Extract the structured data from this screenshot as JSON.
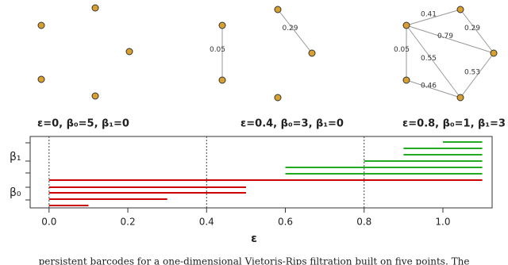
{
  "panels": [
    {
      "caption": "ε=0, β₀=5, β₁=0",
      "points": [
        [
          52,
          32
        ],
        [
          120,
          10
        ],
        [
          163,
          65
        ],
        [
          52,
          100
        ],
        [
          120,
          121
        ]
      ],
      "edges": []
    },
    {
      "caption": "ε=0.4, β₀=3, β₁=0",
      "points": [
        [
          280,
          32
        ],
        [
          280,
          101
        ],
        [
          350,
          12
        ],
        [
          393,
          67
        ],
        [
          350,
          123
        ]
      ],
      "edges": [
        {
          "from": 0,
          "to": 1,
          "label": "0.05"
        },
        {
          "from": 2,
          "to": 3,
          "label": "0.29"
        }
      ]
    },
    {
      "caption": "ε=0.8, β₀=1, β₁=3",
      "points": [
        [
          512,
          32
        ],
        [
          580,
          12
        ],
        [
          622,
          67
        ],
        [
          512,
          101
        ],
        [
          580,
          123
        ]
      ],
      "edges": [
        {
          "from": 0,
          "to": 1,
          "label": "0.41"
        },
        {
          "from": 1,
          "to": 2,
          "label": "0.29"
        },
        {
          "from": 0,
          "to": 2,
          "label": "0.79"
        },
        {
          "from": 0,
          "to": 3,
          "label": "0.05"
        },
        {
          "from": 0,
          "to": 4,
          "label": "0.55"
        },
        {
          "from": 2,
          "to": 4,
          "label": "0.53"
        },
        {
          "from": 3,
          "to": 4,
          "label": "0.46"
        }
      ]
    }
  ],
  "chart_data": {
    "type": "barcode",
    "x_label": "ε",
    "xlim": [
      -0.048,
      1.125
    ],
    "xticks": [
      {
        "value": 0,
        "label": "0.0"
      },
      {
        "value": 0.2,
        "label": "0.2"
      },
      {
        "value": 0.4,
        "label": "0.4"
      },
      {
        "value": 0.6,
        "label": "0.6"
      },
      {
        "value": 0.8,
        "label": "0.8"
      },
      {
        "value": 1,
        "label": "1.0"
      }
    ],
    "markers": [
      0,
      0.4,
      0.8
    ],
    "series": [
      {
        "name": "β₀",
        "color": "#cc0000",
        "bars": [
          [
            0,
            0.1
          ],
          [
            0,
            0.3
          ],
          [
            0,
            0.5
          ],
          [
            0,
            0.5
          ],
          [
            0,
            1.1
          ]
        ]
      },
      {
        "name": "β₁",
        "color": "#22aa22",
        "bars": [
          [
            0.6,
            1.1
          ],
          [
            0.6,
            1.1
          ],
          [
            0.8,
            1.1
          ],
          [
            0.9,
            1.1
          ],
          [
            0.9,
            1.1
          ],
          [
            1.0,
            1.1
          ]
        ]
      }
    ]
  },
  "caption": "persistent barcodes for a one-dimensional Vietoris-Rips filtration built on five points. The"
}
